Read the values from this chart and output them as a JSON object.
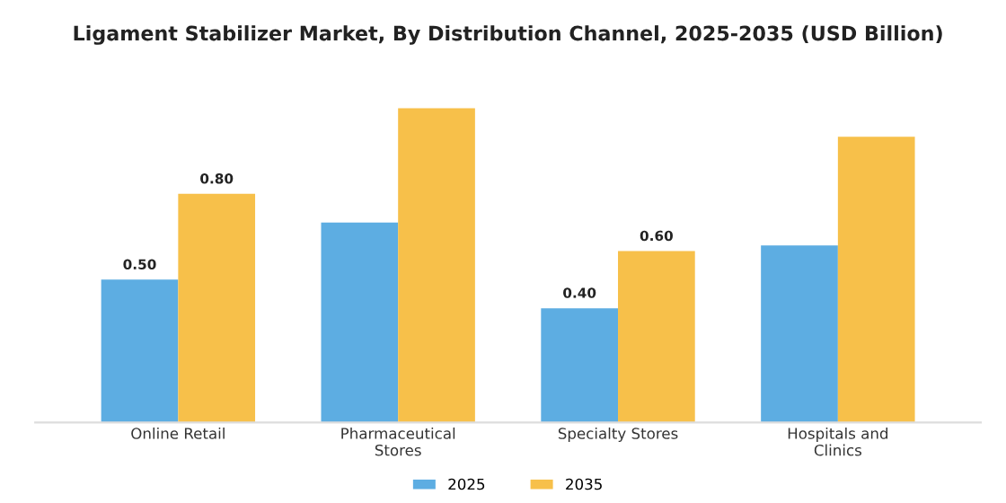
{
  "chart_data": {
    "type": "bar",
    "title": "Ligament Stabilizer Market, By Distribution Channel, 2025-2035 (USD Billion)",
    "categories": [
      "Online Retail",
      "Pharmaceutical\nStores",
      "Specialty Stores",
      "Hospitals and\nClinics"
    ],
    "series": [
      {
        "name": "2025",
        "color": "#5dade2",
        "values": [
          0.5,
          0.7,
          0.4,
          0.62
        ],
        "value_labels": [
          "0.50",
          null,
          "0.40",
          null
        ]
      },
      {
        "name": "2035",
        "color": "#f7c04a",
        "values": [
          0.8,
          1.1,
          0.6,
          1.0
        ],
        "value_labels": [
          "0.80",
          null,
          "0.60",
          null
        ]
      }
    ],
    "legend": "bottom",
    "grid": false
  }
}
